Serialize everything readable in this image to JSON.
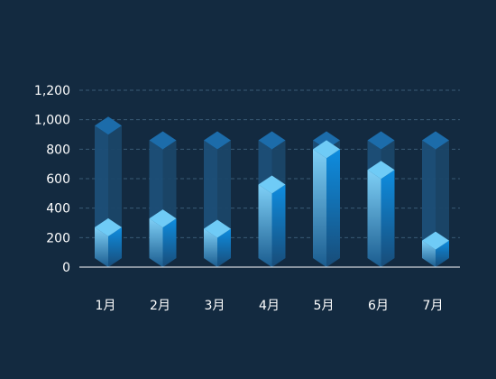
{
  "chart_data": {
    "type": "bar",
    "categories": [
      "1月",
      "2月",
      "3月",
      "4月",
      "5月",
      "6月",
      "7月"
    ],
    "series": [
      {
        "values": [
          270,
          330,
          260,
          560,
          800,
          660,
          180
        ]
      },
      {
        "values": [
          960,
          860,
          860,
          860,
          860,
          860,
          860
        ]
      }
    ],
    "ylim": [
      0,
      1200
    ],
    "yticks": [
      0,
      200,
      400,
      600,
      800,
      1000,
      1200
    ],
    "ytick_labels": [
      "0",
      "200",
      "400",
      "600",
      "800",
      "1,000",
      "1,200"
    ],
    "grid": true,
    "colors": {
      "background": "#132a40",
      "grid": "#3a5a75",
      "axis": "#ffffff",
      "tick_text": "#ffffff",
      "bar_front_top": "#7fd0f7",
      "bar_front_bottom": "#1a5c8f",
      "bar_side_top": "#0e8de0",
      "bar_side_bottom": "#184c78",
      "bar_cap": "#6fcbf6",
      "back_front": "#1d4f78",
      "back_side": "#1b4669",
      "back_cap": "#1d70b0"
    }
  }
}
